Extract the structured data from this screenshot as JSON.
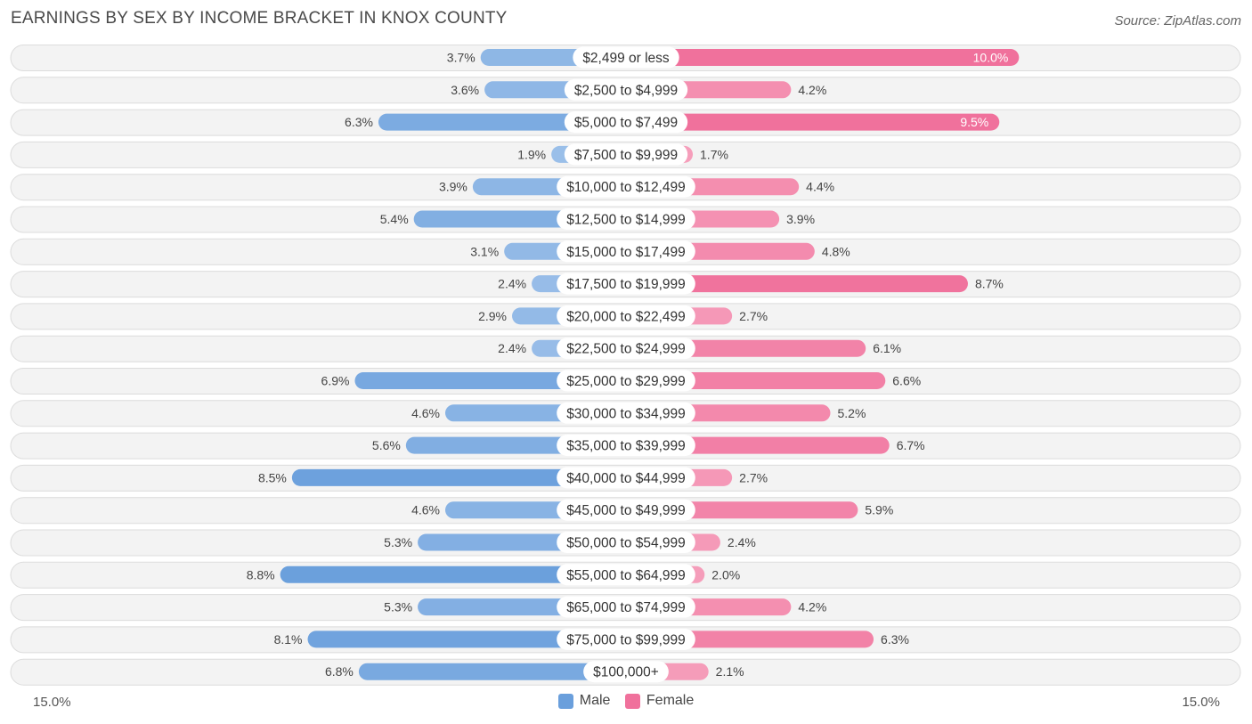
{
  "title": "EARNINGS BY SEX BY INCOME BRACKET IN KNOX COUNTY",
  "source": "Source: ZipAtlas.com",
  "colors": {
    "male_strong": "#6a9fdc",
    "male_light": "#a7c7ec",
    "female_strong": "#f0719c",
    "female_light": "#f7a9c2"
  },
  "chart_data": {
    "type": "bar",
    "orientation": "horizontal-diverging",
    "title": "EARNINGS BY SEX BY INCOME BRACKET IN KNOX COUNTY",
    "categories": [
      "$2,499 or less",
      "$2,500 to $4,999",
      "$5,000 to $7,499",
      "$7,500 to $9,999",
      "$10,000 to $12,499",
      "$12,500 to $14,999",
      "$15,000 to $17,499",
      "$17,500 to $19,999",
      "$20,000 to $22,499",
      "$22,500 to $24,999",
      "$25,000 to $29,999",
      "$30,000 to $34,999",
      "$35,000 to $39,999",
      "$40,000 to $44,999",
      "$45,000 to $49,999",
      "$50,000 to $54,999",
      "$55,000 to $64,999",
      "$65,000 to $74,999",
      "$75,000 to $99,999",
      "$100,000+"
    ],
    "series": [
      {
        "name": "Male",
        "values": [
          3.7,
          3.6,
          6.3,
          1.9,
          3.9,
          5.4,
          3.1,
          2.4,
          2.9,
          2.4,
          6.9,
          4.6,
          5.6,
          8.5,
          4.6,
          5.3,
          8.8,
          5.3,
          8.1,
          6.8
        ],
        "labels": [
          "3.7%",
          "3.6%",
          "6.3%",
          "1.9%",
          "3.9%",
          "5.4%",
          "3.1%",
          "2.4%",
          "2.9%",
          "2.4%",
          "6.9%",
          "4.6%",
          "5.6%",
          "8.5%",
          "4.6%",
          "5.3%",
          "8.8%",
          "5.3%",
          "8.1%",
          "6.8%"
        ]
      },
      {
        "name": "Female",
        "values": [
          10.0,
          4.2,
          9.5,
          1.7,
          4.4,
          3.9,
          4.8,
          8.7,
          2.7,
          6.1,
          6.6,
          5.2,
          6.7,
          2.7,
          5.9,
          2.4,
          2.0,
          4.2,
          6.3,
          2.1
        ],
        "labels": [
          "10.0%",
          "4.2%",
          "9.5%",
          "1.7%",
          "4.4%",
          "3.9%",
          "4.8%",
          "8.7%",
          "2.7%",
          "6.1%",
          "6.6%",
          "5.2%",
          "6.7%",
          "2.7%",
          "5.9%",
          "2.4%",
          "2.0%",
          "4.2%",
          "6.3%",
          "2.1%"
        ]
      }
    ],
    "xlim": [
      -15.0,
      15.0
    ],
    "axis_labels": {
      "left": "15.0%",
      "right": "15.0%"
    },
    "legend": [
      "Male",
      "Female"
    ],
    "legend_position": "bottom-center",
    "label_inside_threshold": 9.0
  }
}
